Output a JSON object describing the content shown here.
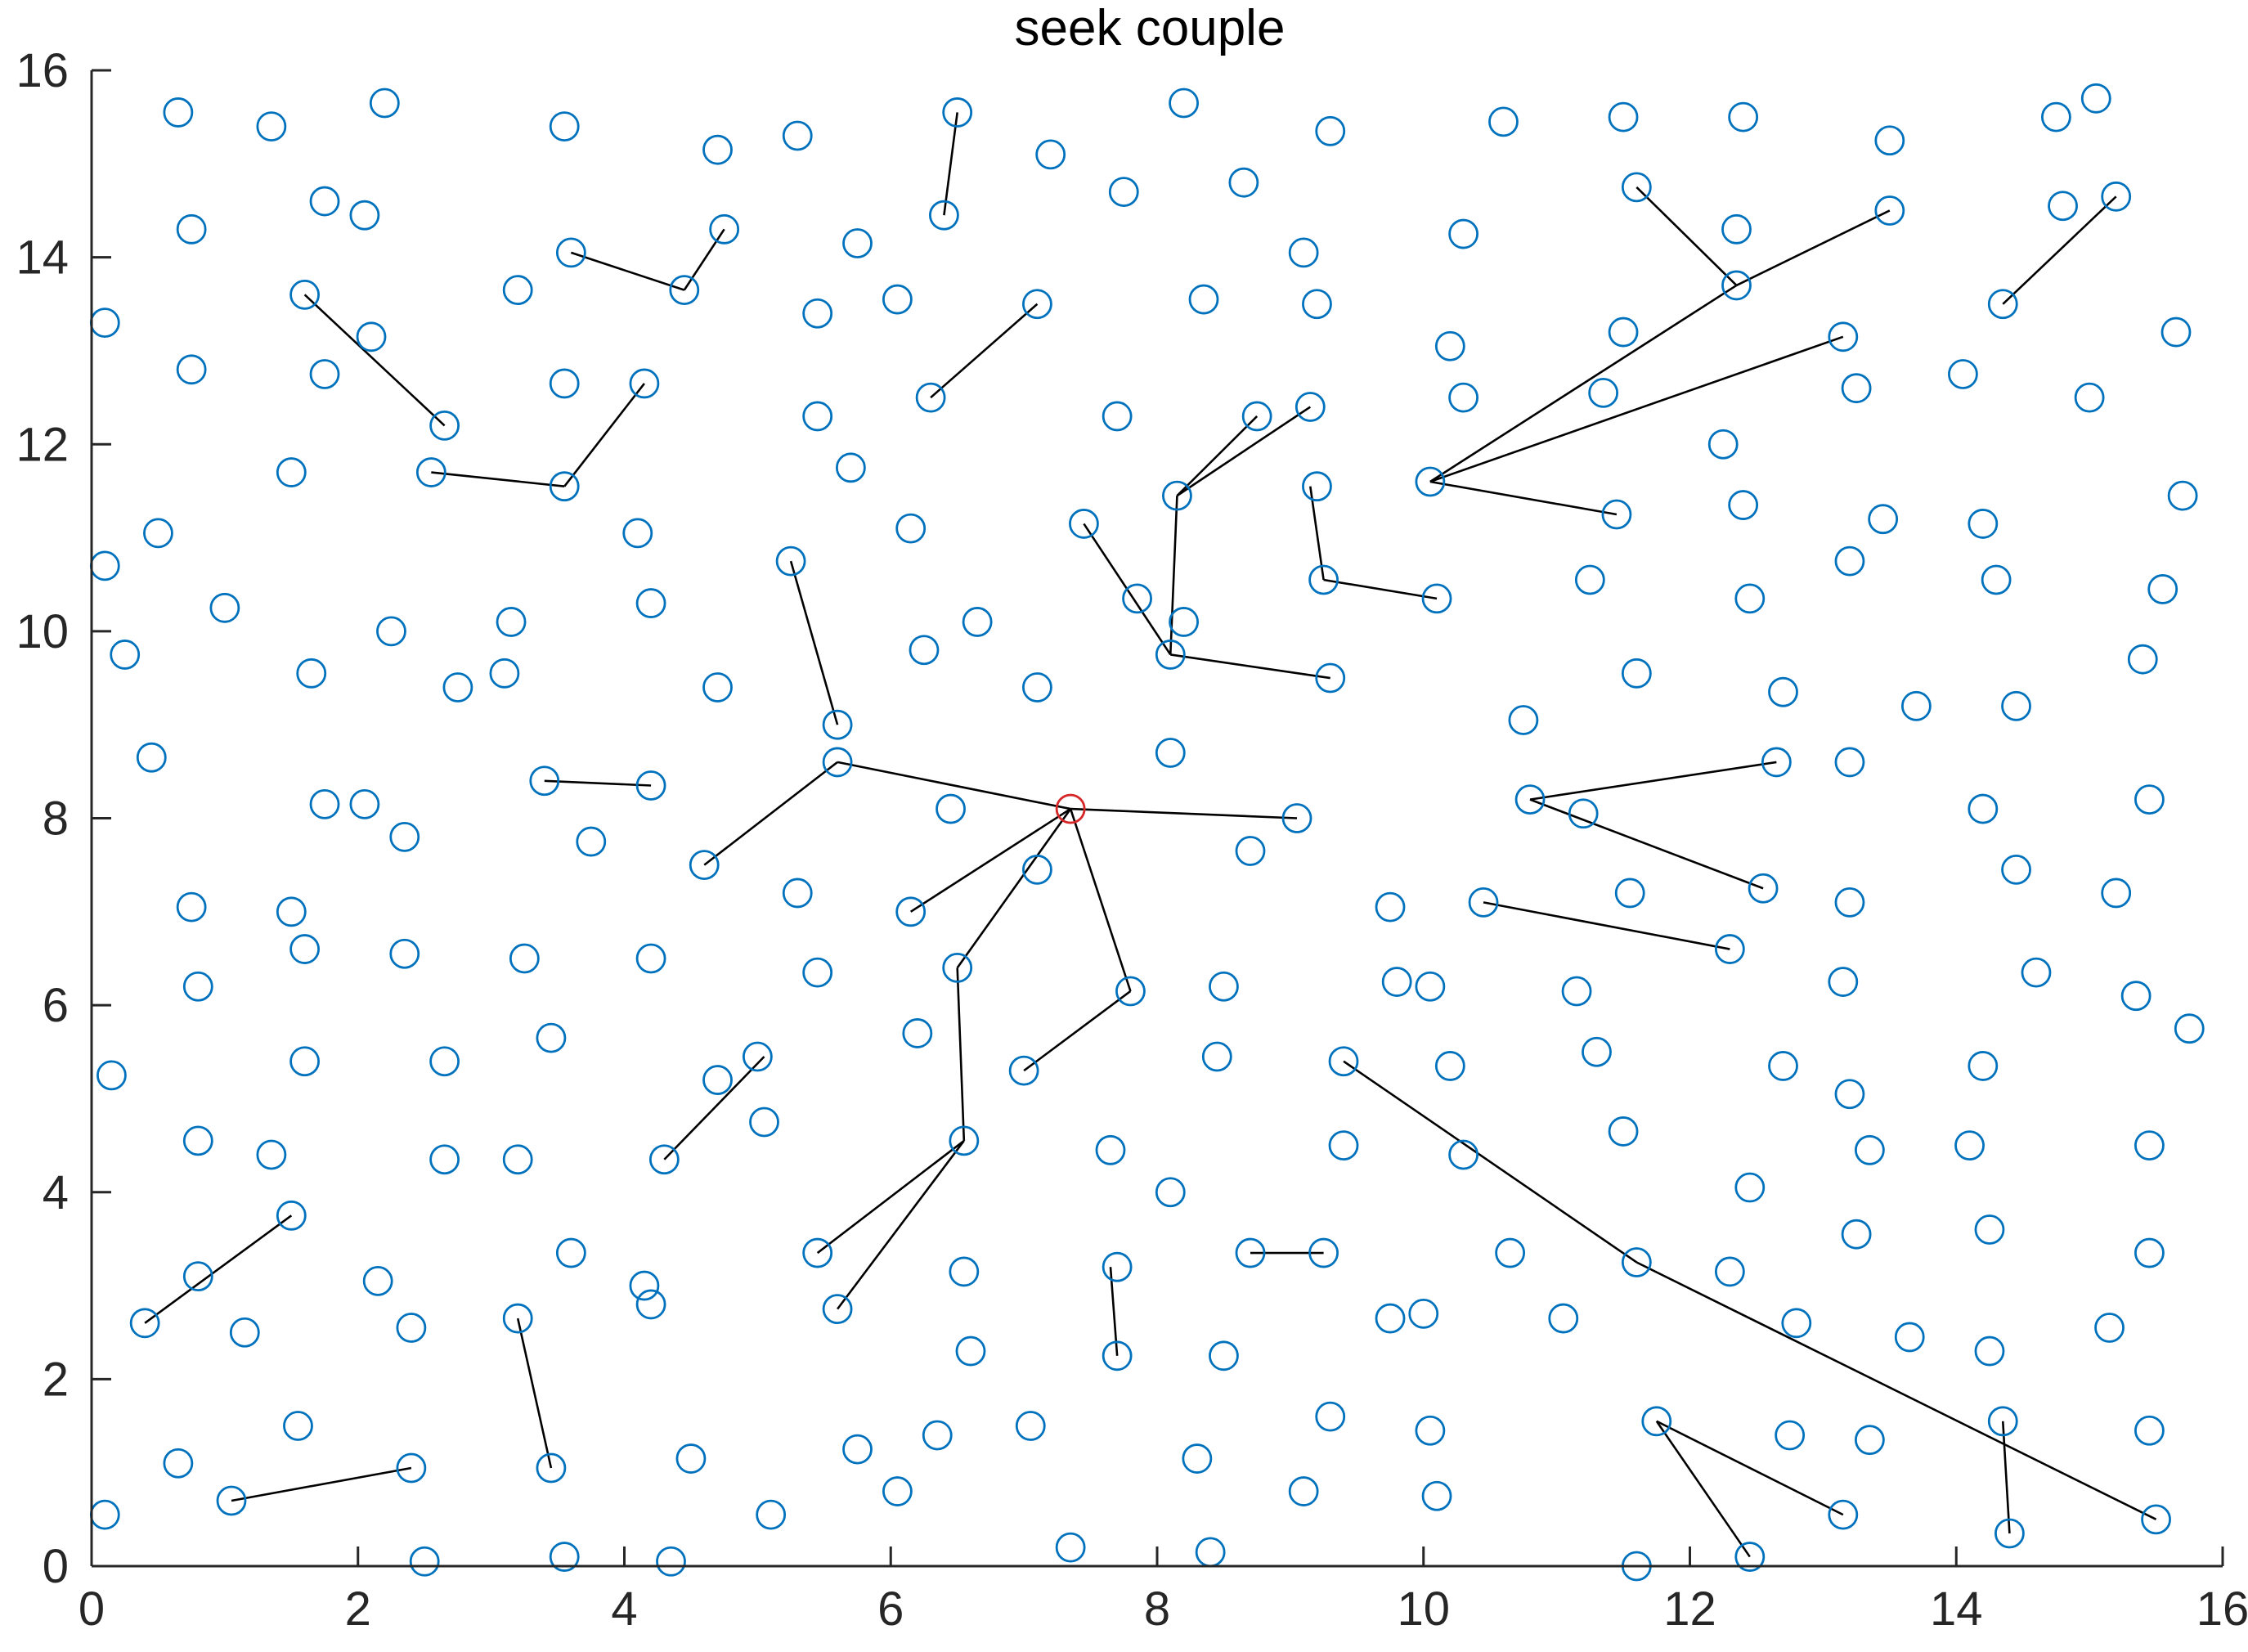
{
  "chart_data": {
    "type": "scatter",
    "title": "seek couple",
    "xlabel": "",
    "ylabel": "",
    "xlim": [
      0,
      16
    ],
    "ylim": [
      0,
      16
    ],
    "xticks": [
      0,
      2,
      4,
      6,
      8,
      10,
      12,
      14,
      16
    ],
    "yticks": [
      0,
      2,
      4,
      6,
      8,
      10,
      12,
      14,
      16
    ],
    "grid": false,
    "box": false,
    "colors": {
      "points": "#0072BD",
      "root": "#D62728",
      "edges": "#000000"
    },
    "root": {
      "x": 7.35,
      "y": 8.1
    },
    "points": [
      [
        0.65,
        15.55
      ],
      [
        1.35,
        15.4
      ],
      [
        2.2,
        15.65
      ],
      [
        3.55,
        15.4
      ],
      [
        4.7,
        15.15
      ],
      [
        5.3,
        15.3
      ],
      [
        6.5,
        15.55
      ],
      [
        7.2,
        15.1
      ],
      [
        8.2,
        15.65
      ],
      [
        9.3,
        15.35
      ],
      [
        10.6,
        15.45
      ],
      [
        11.5,
        15.5
      ],
      [
        12.4,
        15.5
      ],
      [
        13.5,
        15.25
      ],
      [
        14.75,
        15.5
      ],
      [
        15.05,
        15.7
      ],
      [
        1.75,
        14.6
      ],
      [
        2.05,
        14.45
      ],
      [
        0.75,
        14.3
      ],
      [
        3.6,
        14.05
      ],
      [
        4.45,
        13.65
      ],
      [
        4.75,
        14.3
      ],
      [
        5.75,
        14.15
      ],
      [
        6.4,
        14.45
      ],
      [
        7.75,
        14.7
      ],
      [
        8.65,
        14.8
      ],
      [
        9.1,
        14.05
      ],
      [
        10.3,
        14.25
      ],
      [
        11.6,
        14.75
      ],
      [
        12.35,
        14.3
      ],
      [
        13.5,
        14.5
      ],
      [
        14.8,
        14.55
      ],
      [
        15.2,
        14.65
      ],
      [
        0.1,
        13.3
      ],
      [
        1.6,
        13.6
      ],
      [
        2.1,
        13.15
      ],
      [
        3.2,
        13.65
      ],
      [
        5.45,
        13.4
      ],
      [
        6.05,
        13.55
      ],
      [
        7.1,
        13.5
      ],
      [
        8.35,
        13.55
      ],
      [
        9.2,
        13.5
      ],
      [
        10.2,
        13.05
      ],
      [
        11.5,
        13.2
      ],
      [
        12.35,
        13.7
      ],
      [
        13.15,
        13.15
      ],
      [
        14.35,
        13.5
      ],
      [
        15.65,
        13.2
      ],
      [
        0.75,
        12.8
      ],
      [
        1.75,
        12.75
      ],
      [
        2.65,
        12.2
      ],
      [
        3.55,
        12.65
      ],
      [
        4.15,
        12.65
      ],
      [
        5.45,
        12.3
      ],
      [
        6.3,
        12.5
      ],
      [
        7.7,
        12.3
      ],
      [
        8.75,
        12.3
      ],
      [
        9.15,
        12.4
      ],
      [
        10.3,
        12.5
      ],
      [
        11.35,
        12.55
      ],
      [
        12.25,
        12.0
      ],
      [
        13.25,
        12.6
      ],
      [
        14.05,
        12.75
      ],
      [
        15.0,
        12.5
      ],
      [
        1.5,
        11.7
      ],
      [
        2.55,
        11.7
      ],
      [
        3.55,
        11.55
      ],
      [
        5.7,
        11.75
      ],
      [
        8.15,
        11.45
      ],
      [
        9.2,
        11.55
      ],
      [
        10.05,
        11.6
      ],
      [
        12.4,
        11.35
      ],
      [
        11.45,
        11.25
      ],
      [
        13.45,
        11.2
      ],
      [
        14.2,
        11.15
      ],
      [
        15.7,
        11.45
      ],
      [
        0.5,
        11.05
      ],
      [
        0.1,
        10.7
      ],
      [
        4.1,
        11.05
      ],
      [
        6.15,
        11.1
      ],
      [
        7.45,
        11.15
      ],
      [
        5.25,
        10.75
      ],
      [
        9.25,
        10.55
      ],
      [
        11.25,
        10.55
      ],
      [
        13.2,
        10.75
      ],
      [
        14.3,
        10.55
      ],
      [
        1.0,
        10.25
      ],
      [
        4.2,
        10.3
      ],
      [
        7.85,
        10.35
      ],
      [
        10.1,
        10.35
      ],
      [
        12.45,
        10.35
      ],
      [
        15.55,
        10.45
      ],
      [
        0.25,
        9.75
      ],
      [
        2.25,
        10.0
      ],
      [
        3.15,
        10.1
      ],
      [
        6.25,
        9.8
      ],
      [
        6.65,
        10.1
      ],
      [
        8.2,
        10.1
      ],
      [
        8.1,
        9.75
      ],
      [
        15.4,
        9.7
      ],
      [
        1.65,
        9.55
      ],
      [
        2.75,
        9.4
      ],
      [
        3.1,
        9.55
      ],
      [
        4.7,
        9.4
      ],
      [
        7.1,
        9.4
      ],
      [
        9.3,
        9.5
      ],
      [
        11.6,
        9.55
      ],
      [
        12.7,
        9.35
      ],
      [
        13.7,
        9.2
      ],
      [
        14.45,
        9.2
      ],
      [
        5.6,
        9.0
      ],
      [
        10.75,
        9.05
      ],
      [
        0.45,
        8.65
      ],
      [
        5.6,
        8.6
      ],
      [
        8.1,
        8.7
      ],
      [
        12.65,
        8.6
      ],
      [
        13.2,
        8.6
      ],
      [
        15.45,
        8.2
      ],
      [
        14.2,
        8.1
      ],
      [
        1.75,
        8.15
      ],
      [
        2.05,
        8.15
      ],
      [
        3.4,
        8.4
      ],
      [
        4.2,
        8.35
      ],
      [
        6.45,
        8.1
      ],
      [
        9.05,
        8.0
      ],
      [
        10.8,
        8.2
      ],
      [
        11.2,
        8.05
      ],
      [
        2.35,
        7.8
      ],
      [
        3.75,
        7.75
      ],
      [
        4.6,
        7.5
      ],
      [
        8.7,
        7.65
      ],
      [
        14.45,
        7.45
      ],
      [
        0.75,
        7.05
      ],
      [
        1.5,
        7.0
      ],
      [
        5.3,
        7.2
      ],
      [
        6.15,
        7.0
      ],
      [
        7.1,
        7.45
      ],
      [
        9.75,
        7.05
      ],
      [
        10.45,
        7.1
      ],
      [
        11.55,
        7.2
      ],
      [
        12.55,
        7.25
      ],
      [
        13.2,
        7.1
      ],
      [
        15.2,
        7.2
      ],
      [
        1.6,
        6.6
      ],
      [
        2.35,
        6.55
      ],
      [
        3.25,
        6.5
      ],
      [
        4.2,
        6.5
      ],
      [
        6.5,
        6.4
      ],
      [
        5.45,
        6.35
      ],
      [
        0.8,
        6.2
      ],
      [
        7.8,
        6.15
      ],
      [
        8.5,
        6.2
      ],
      [
        9.8,
        6.25
      ],
      [
        10.05,
        6.2
      ],
      [
        11.15,
        6.15
      ],
      [
        12.3,
        6.6
      ],
      [
        13.15,
        6.25
      ],
      [
        14.6,
        6.35
      ],
      [
        15.35,
        6.1
      ],
      [
        15.75,
        5.75
      ],
      [
        0.15,
        5.25
      ],
      [
        1.6,
        5.4
      ],
      [
        2.65,
        5.4
      ],
      [
        3.45,
        5.65
      ],
      [
        4.7,
        5.2
      ],
      [
        5.0,
        5.45
      ],
      [
        6.2,
        5.7
      ],
      [
        7.0,
        5.3
      ],
      [
        8.45,
        5.45
      ],
      [
        9.4,
        5.4
      ],
      [
        10.2,
        5.35
      ],
      [
        11.3,
        5.5
      ],
      [
        12.7,
        5.35
      ],
      [
        13.2,
        5.05
      ],
      [
        14.2,
        5.35
      ],
      [
        0.8,
        4.55
      ],
      [
        1.35,
        4.4
      ],
      [
        2.65,
        4.35
      ],
      [
        3.2,
        4.35
      ],
      [
        4.3,
        4.35
      ],
      [
        5.05,
        4.75
      ],
      [
        6.55,
        4.55
      ],
      [
        7.65,
        4.45
      ],
      [
        8.1,
        4.0
      ],
      [
        9.4,
        4.5
      ],
      [
        10.3,
        4.4
      ],
      [
        11.5,
        4.65
      ],
      [
        12.45,
        4.05
      ],
      [
        13.35,
        4.45
      ],
      [
        14.1,
        4.5
      ],
      [
        15.45,
        4.5
      ],
      [
        1.5,
        3.75
      ],
      [
        14.25,
        3.6
      ],
      [
        13.25,
        3.55
      ],
      [
        0.8,
        3.1
      ],
      [
        2.15,
        3.05
      ],
      [
        3.6,
        3.35
      ],
      [
        4.15,
        3.0
      ],
      [
        4.2,
        2.8
      ],
      [
        5.45,
        3.35
      ],
      [
        6.55,
        3.15
      ],
      [
        7.7,
        3.2
      ],
      [
        8.7,
        3.35
      ],
      [
        9.25,
        3.35
      ],
      [
        10.65,
        3.35
      ],
      [
        11.6,
        3.25
      ],
      [
        12.3,
        3.15
      ],
      [
        15.45,
        3.35
      ],
      [
        0.4,
        2.6
      ],
      [
        1.15,
        2.5
      ],
      [
        2.4,
        2.55
      ],
      [
        3.2,
        2.65
      ],
      [
        5.6,
        2.75
      ],
      [
        6.6,
        2.3
      ],
      [
        7.7,
        2.25
      ],
      [
        8.5,
        2.25
      ],
      [
        9.75,
        2.65
      ],
      [
        10.0,
        2.7
      ],
      [
        11.05,
        2.65
      ],
      [
        12.8,
        2.6
      ],
      [
        13.65,
        2.45
      ],
      [
        14.25,
        2.3
      ],
      [
        15.15,
        2.55
      ],
      [
        1.55,
        1.5
      ],
      [
        0.65,
        1.1
      ],
      [
        1.05,
        0.7
      ],
      [
        2.4,
        1.05
      ],
      [
        3.45,
        1.05
      ],
      [
        4.5,
        1.15
      ],
      [
        5.75,
        1.25
      ],
      [
        6.35,
        1.4
      ],
      [
        7.05,
        1.5
      ],
      [
        8.3,
        1.15
      ],
      [
        9.3,
        1.6
      ],
      [
        10.05,
        1.45
      ],
      [
        11.75,
        1.55
      ],
      [
        12.75,
        1.4
      ],
      [
        13.35,
        1.35
      ],
      [
        14.35,
        1.55
      ],
      [
        15.45,
        1.45
      ],
      [
        0.1,
        0.55
      ],
      [
        5.1,
        0.55
      ],
      [
        6.05,
        0.8
      ],
      [
        9.1,
        0.8
      ],
      [
        10.1,
        0.75
      ],
      [
        13.15,
        0.55
      ],
      [
        14.4,
        0.35
      ],
      [
        15.5,
        0.5
      ],
      [
        2.5,
        0.05
      ],
      [
        3.55,
        0.1
      ],
      [
        4.35,
        0.05
      ],
      [
        7.35,
        0.2
      ],
      [
        8.4,
        0.15
      ],
      [
        11.6,
        0.0
      ],
      [
        12.45,
        0.1
      ]
    ],
    "edges": [
      [
        [
          7.35,
          8.1
        ],
        [
          5.6,
          8.6
        ]
      ],
      [
        [
          5.6,
          8.6
        ],
        [
          4.6,
          7.5
        ]
      ],
      [
        [
          7.35,
          8.1
        ],
        [
          9.05,
          8.0
        ]
      ],
      [
        [
          7.35,
          8.1
        ],
        [
          6.15,
          7.0
        ]
      ],
      [
        [
          7.35,
          8.1
        ],
        [
          6.5,
          6.4
        ]
      ],
      [
        [
          6.5,
          6.4
        ],
        [
          6.55,
          4.55
        ]
      ],
      [
        [
          6.55,
          4.55
        ],
        [
          5.45,
          3.35
        ]
      ],
      [
        [
          6.55,
          4.55
        ],
        [
          5.6,
          2.75
        ]
      ],
      [
        [
          7.35,
          8.1
        ],
        [
          7.8,
          6.15
        ]
      ],
      [
        [
          7.8,
          6.15
        ],
        [
          7.0,
          5.3
        ]
      ],
      [
        [
          5.25,
          10.75
        ],
        [
          5.6,
          9.0
        ]
      ],
      [
        [
          7.45,
          11.15
        ],
        [
          8.1,
          9.75
        ]
      ],
      [
        [
          8.1,
          9.75
        ],
        [
          9.3,
          9.5
        ]
      ],
      [
        [
          8.1,
          9.75
        ],
        [
          8.15,
          11.45
        ]
      ],
      [
        [
          8.15,
          11.45
        ],
        [
          8.75,
          12.3
        ]
      ],
      [
        [
          8.15,
          11.45
        ],
        [
          9.15,
          12.4
        ]
      ],
      [
        [
          9.15,
          11.55
        ],
        [
          9.25,
          10.55
        ]
      ],
      [
        [
          9.25,
          10.55
        ],
        [
          10.1,
          10.35
        ]
      ],
      [
        [
          10.05,
          11.6
        ],
        [
          11.45,
          11.25
        ]
      ],
      [
        [
          10.05,
          11.6
        ],
        [
          13.15,
          13.15
        ]
      ],
      [
        [
          10.05,
          11.6
        ],
        [
          12.35,
          13.7
        ]
      ],
      [
        [
          12.35,
          13.7
        ],
        [
          13.5,
          14.5
        ]
      ],
      [
        [
          12.35,
          13.7
        ],
        [
          11.6,
          14.75
        ]
      ],
      [
        [
          14.35,
          13.5
        ],
        [
          15.2,
          14.65
        ]
      ],
      [
        [
          10.8,
          8.2
        ],
        [
          12.65,
          8.6
        ]
      ],
      [
        [
          10.8,
          8.2
        ],
        [
          12.55,
          7.25
        ]
      ],
      [
        [
          10.45,
          7.1
        ],
        [
          12.3,
          6.6
        ]
      ],
      [
        [
          9.4,
          5.4
        ],
        [
          11.6,
          3.25
        ]
      ],
      [
        [
          11.6,
          3.25
        ],
        [
          15.5,
          0.5
        ]
      ],
      [
        [
          14.35,
          1.55
        ],
        [
          14.4,
          0.35
        ]
      ],
      [
        [
          11.75,
          1.55
        ],
        [
          13.15,
          0.55
        ]
      ],
      [
        [
          11.75,
          1.55
        ],
        [
          12.45,
          0.1
        ]
      ],
      [
        [
          8.7,
          3.35
        ],
        [
          9.25,
          3.35
        ]
      ],
      [
        [
          7.65,
          3.2
        ],
        [
          7.7,
          2.25
        ]
      ],
      [
        [
          4.3,
          4.35
        ],
        [
          5.05,
          5.45
        ]
      ],
      [
        [
          3.2,
          2.65
        ],
        [
          3.45,
          1.05
        ]
      ],
      [
        [
          1.05,
          0.7
        ],
        [
          2.4,
          1.05
        ]
      ],
      [
        [
          0.4,
          2.6
        ],
        [
          1.5,
          3.75
        ]
      ],
      [
        [
          3.4,
          8.4
        ],
        [
          4.2,
          8.35
        ]
      ],
      [
        [
          2.55,
          11.7
        ],
        [
          3.55,
          11.55
        ]
      ],
      [
        [
          3.55,
          11.55
        ],
        [
          4.15,
          12.65
        ]
      ],
      [
        [
          1.6,
          13.6
        ],
        [
          2.65,
          12.2
        ]
      ],
      [
        [
          3.6,
          14.05
        ],
        [
          4.45,
          13.65
        ]
      ],
      [
        [
          4.45,
          13.65
        ],
        [
          4.75,
          14.3
        ]
      ],
      [
        [
          6.3,
          12.5
        ],
        [
          7.1,
          13.5
        ]
      ],
      [
        [
          6.4,
          14.45
        ],
        [
          6.5,
          15.55
        ]
      ]
    ]
  }
}
